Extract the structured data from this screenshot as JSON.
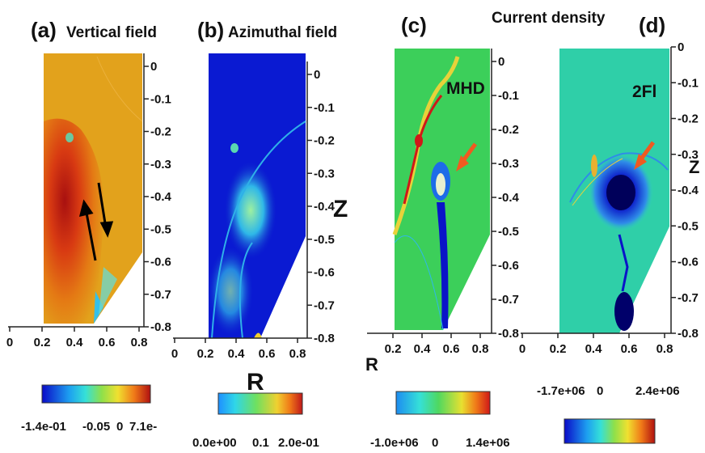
{
  "panels": [
    {
      "letter": "(a)",
      "title": "Vertical field"
    },
    {
      "letter": "(b)",
      "title": "Azimuthal  field"
    },
    {
      "letter": "(c)",
      "title": "",
      "inlabel": "MHD"
    },
    {
      "letter": "(d)",
      "title": "",
      "inlabel": "2Fl"
    }
  ],
  "shared_title": "Current density",
  "axis": {
    "x_name": "R",
    "z_name": "Z"
  },
  "colorbars": [
    {
      "labels": [
        "-1.4e-01",
        "-0.05",
        "0",
        "7.1e-"
      ]
    },
    {
      "labels": [
        "0.0e+00",
        "0.1",
        "2.0e-01"
      ]
    },
    {
      "labels": [
        "-1.0e+06",
        "0",
        "1.4e+06"
      ]
    },
    {
      "labels": [
        "-1.7e+06",
        "0",
        "2.4e+06"
      ]
    }
  ],
  "chart_data": {
    "type": "heatmap",
    "x_ticks": [
      "0",
      "0.2",
      "0.4",
      "0.6",
      "0.8"
    ],
    "z_ticks": [
      "0",
      "-0.1",
      "-0.2",
      "-0.3",
      "-0.4",
      "-0.5",
      "-0.6",
      "-0.7",
      "-0.8"
    ],
    "xlim": [
      0.2,
      0.8
    ],
    "zlim": [
      -0.8,
      0
    ],
    "colors": {
      "blue": "#1a1ad0",
      "cyan": "#2fd6e8",
      "green": "#3ccf5a",
      "yellow": "#e8d23a",
      "orange": "#e8821e",
      "red": "#c0181a"
    }
  }
}
